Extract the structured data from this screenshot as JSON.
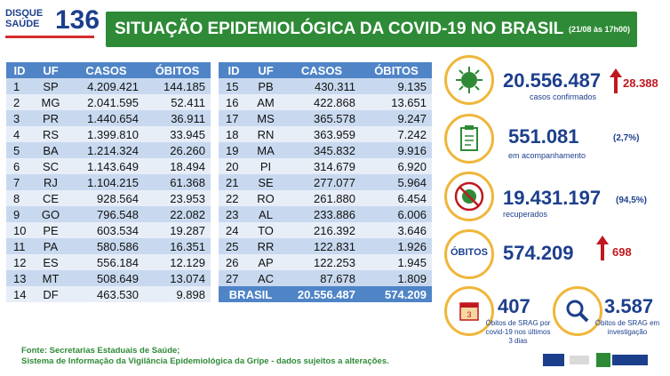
{
  "logo": {
    "line1": "DISQUE",
    "line2": "SAÚDE",
    "number": "136"
  },
  "header": {
    "title": "SITUAÇÃO EPIDEMIOLÓGICA DA COVID-19 NO BRASIL",
    "time": "(21/08 às 17h00)"
  },
  "table": {
    "headers": [
      "ID",
      "UF",
      "CASOS",
      "ÓBITOS"
    ],
    "left": [
      [
        "1",
        "SP",
        "4.209.421",
        "144.185"
      ],
      [
        "2",
        "MG",
        "2.041.595",
        "52.411"
      ],
      [
        "3",
        "PR",
        "1.440.654",
        "36.911"
      ],
      [
        "4",
        "RS",
        "1.399.810",
        "33.945"
      ],
      [
        "5",
        "BA",
        "1.214.324",
        "26.260"
      ],
      [
        "6",
        "SC",
        "1.143.649",
        "18.494"
      ],
      [
        "7",
        "RJ",
        "1.104.215",
        "61.368"
      ],
      [
        "8",
        "CE",
        "928.564",
        "23.953"
      ],
      [
        "9",
        "GO",
        "796.548",
        "22.082"
      ],
      [
        "10",
        "PE",
        "603.534",
        "19.287"
      ],
      [
        "11",
        "PA",
        "580.586",
        "16.351"
      ],
      [
        "12",
        "ES",
        "556.184",
        "12.129"
      ],
      [
        "13",
        "MT",
        "508.649",
        "13.074"
      ],
      [
        "14",
        "DF",
        "463.530",
        "9.898"
      ]
    ],
    "right": [
      [
        "15",
        "PB",
        "430.311",
        "9.135"
      ],
      [
        "16",
        "AM",
        "422.868",
        "13.651"
      ],
      [
        "17",
        "MS",
        "365.578",
        "9.247"
      ],
      [
        "18",
        "RN",
        "363.959",
        "7.242"
      ],
      [
        "19",
        "MA",
        "345.832",
        "9.916"
      ],
      [
        "20",
        "PI",
        "314.679",
        "6.920"
      ],
      [
        "21",
        "SE",
        "277.077",
        "5.964"
      ],
      [
        "22",
        "RO",
        "261.880",
        "6.454"
      ],
      [
        "23",
        "AL",
        "233.886",
        "6.006"
      ],
      [
        "24",
        "TO",
        "216.392",
        "3.646"
      ],
      [
        "25",
        "RR",
        "122.831",
        "1.926"
      ],
      [
        "26",
        "AP",
        "122.253",
        "1.945"
      ],
      [
        "27",
        "AC",
        "87.678",
        "1.809"
      ]
    ],
    "total": {
      "label": "BRASIL",
      "cases": "20.556.487",
      "deaths": "574.209"
    }
  },
  "stats": {
    "confirmed": {
      "value": "20.556.487",
      "new": "28.388",
      "caption": "casos confirmados"
    },
    "monitoring": {
      "value": "551.081",
      "pct": "(2,7%)",
      "caption": "em acompanhamento"
    },
    "recovered": {
      "value": "19.431.197",
      "pct": "(94,5%)",
      "caption": "recuperados"
    },
    "deaths": {
      "label": "ÓBITOS",
      "value": "574.209",
      "new": "698"
    },
    "srag_deaths": {
      "value": "407",
      "caption1": "Óbitos de SRAG por",
      "caption2": "covid-19 nos últimos",
      "caption3": "3 dias"
    },
    "srag_investigation": {
      "value": "3.587",
      "caption1": "Óbitos de SRAG em",
      "caption2": "investigação"
    }
  },
  "footer": {
    "line1": "Fonte: Secretarias Estaduais de Saúde;",
    "line2": "Sistema de Informação da Vigilância Epidemiológica da Gripe - dados sujeitos a alterações."
  },
  "colors": {
    "green": "#2e8a36",
    "blue": "#1c3f8c",
    "table_header": "#4f84c7",
    "red": "#c0181f",
    "accent": "#f0b63a"
  },
  "icons": [
    "virus-icon",
    "clipboard-icon",
    "no-virus-icon",
    "calendar-icon",
    "magnifier-icon",
    "arrow-up-icon"
  ]
}
